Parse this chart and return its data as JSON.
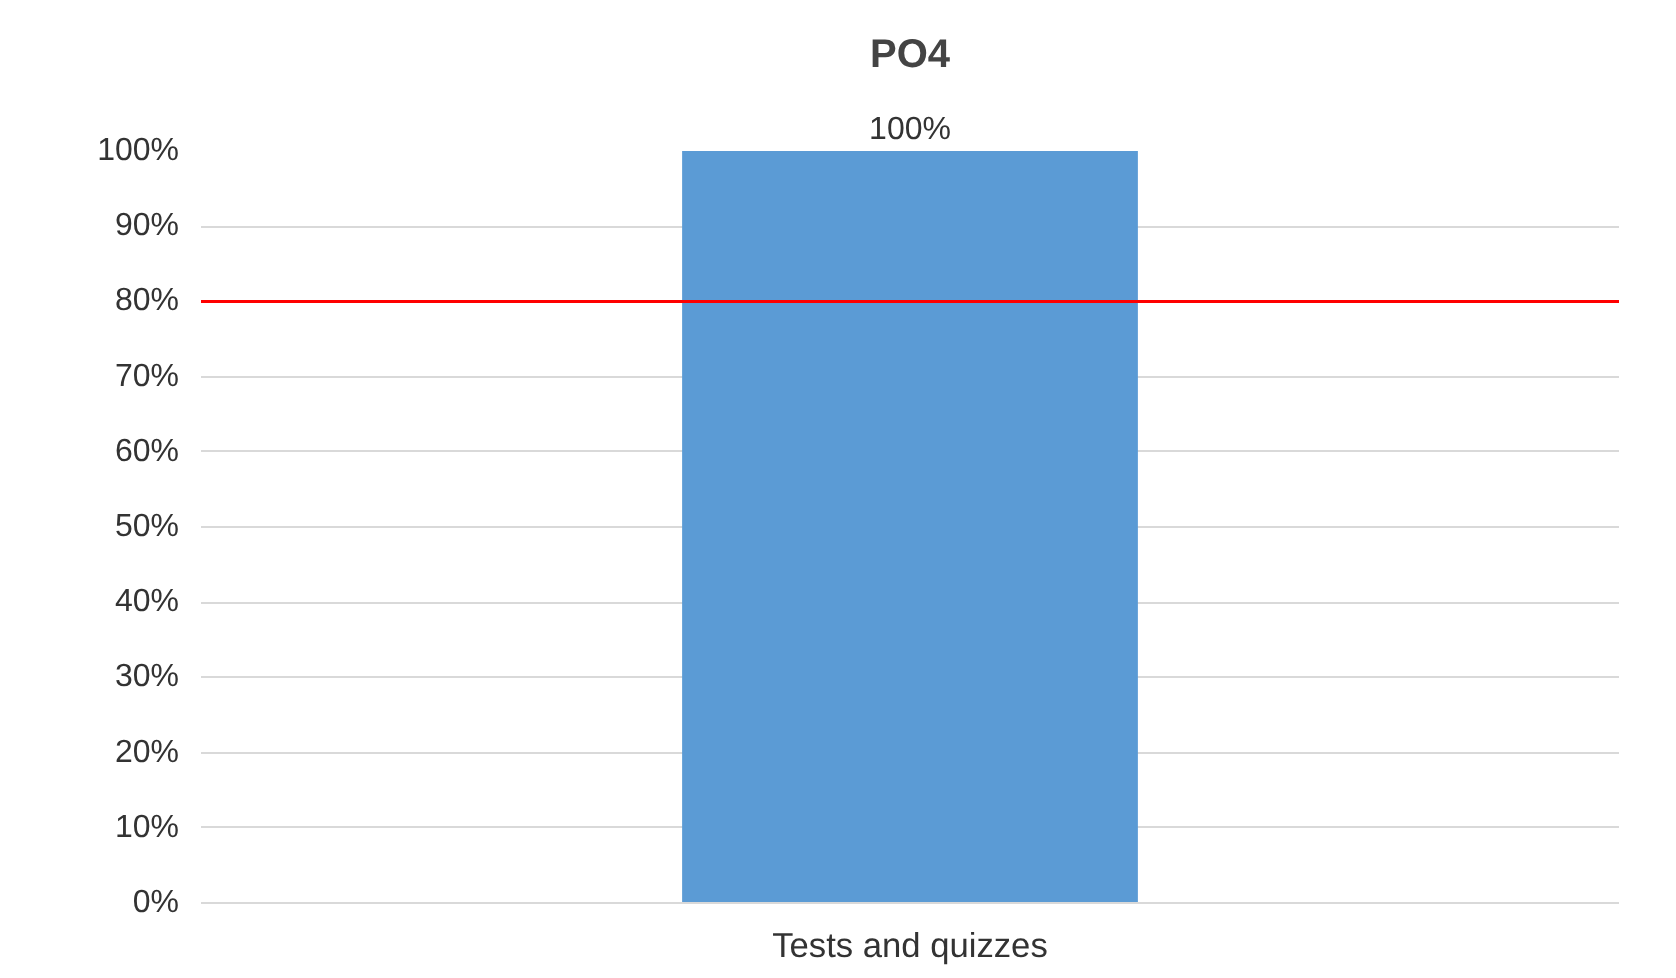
{
  "chart_data": {
    "type": "bar",
    "title": "PO4",
    "categories": [
      "Tests and quizzes"
    ],
    "series": [
      {
        "color": "#5b9bd5",
        "values": [
          100
        ]
      }
    ],
    "value_labels": [
      "100%"
    ],
    "ylim": [
      0,
      100
    ],
    "yticks": [
      {
        "value": 0,
        "label": "0%"
      },
      {
        "value": 10,
        "label": "10%"
      },
      {
        "value": 20,
        "label": "20%"
      },
      {
        "value": 30,
        "label": "30%"
      },
      {
        "value": 40,
        "label": "40%"
      },
      {
        "value": 50,
        "label": "50%"
      },
      {
        "value": 60,
        "label": "60%"
      },
      {
        "value": 70,
        "label": "70%"
      },
      {
        "value": 80,
        "label": "80%"
      },
      {
        "value": 90,
        "label": "90%"
      },
      {
        "value": 100,
        "label": "100%"
      }
    ],
    "grid": "y",
    "ref_lines": [
      {
        "axis": "y",
        "value": 80,
        "color": "#ff0000"
      }
    ]
  }
}
